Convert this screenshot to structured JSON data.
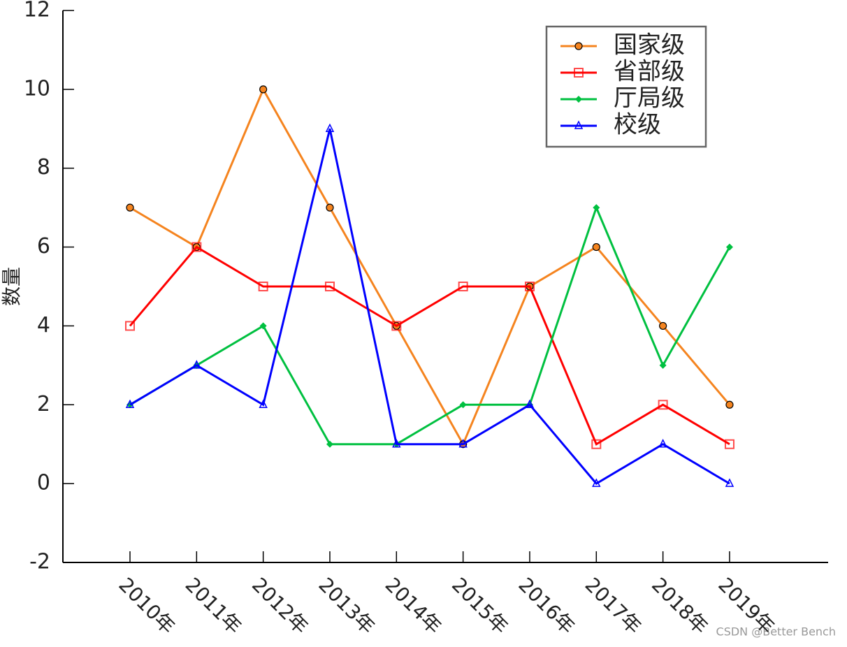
{
  "chart_data": {
    "type": "line",
    "categories": [
      "2010年",
      "2011年",
      "2012年",
      "2013年",
      "2014年",
      "2015年",
      "2016年",
      "2017年",
      "2018年",
      "2019年"
    ],
    "series": [
      {
        "name": "国家级",
        "color": "#f5841f",
        "marker": "circle",
        "values": [
          7,
          6,
          10,
          7,
          4,
          1,
          5,
          6,
          4,
          2
        ]
      },
      {
        "name": "省部级",
        "color": "#ff0000",
        "marker": "square",
        "values": [
          4,
          6,
          5,
          5,
          4,
          5,
          5,
          1,
          2,
          1
        ]
      },
      {
        "name": "厅局级",
        "color": "#00c040",
        "marker": "diamond",
        "values": [
          2,
          3,
          4,
          1,
          1,
          2,
          2,
          7,
          3,
          6
        ]
      },
      {
        "name": "校级",
        "color": "#0000ff",
        "marker": "triangle",
        "values": [
          2,
          3,
          2,
          9,
          1,
          1,
          2,
          0,
          1,
          0
        ]
      }
    ],
    "ylabel": "数量",
    "ylim": [
      -2,
      12
    ],
    "yticks": [
      -2,
      0,
      2,
      4,
      6,
      8,
      10,
      12
    ],
    "legend": "upper right",
    "watermark": "CSDN @Better Bench"
  }
}
